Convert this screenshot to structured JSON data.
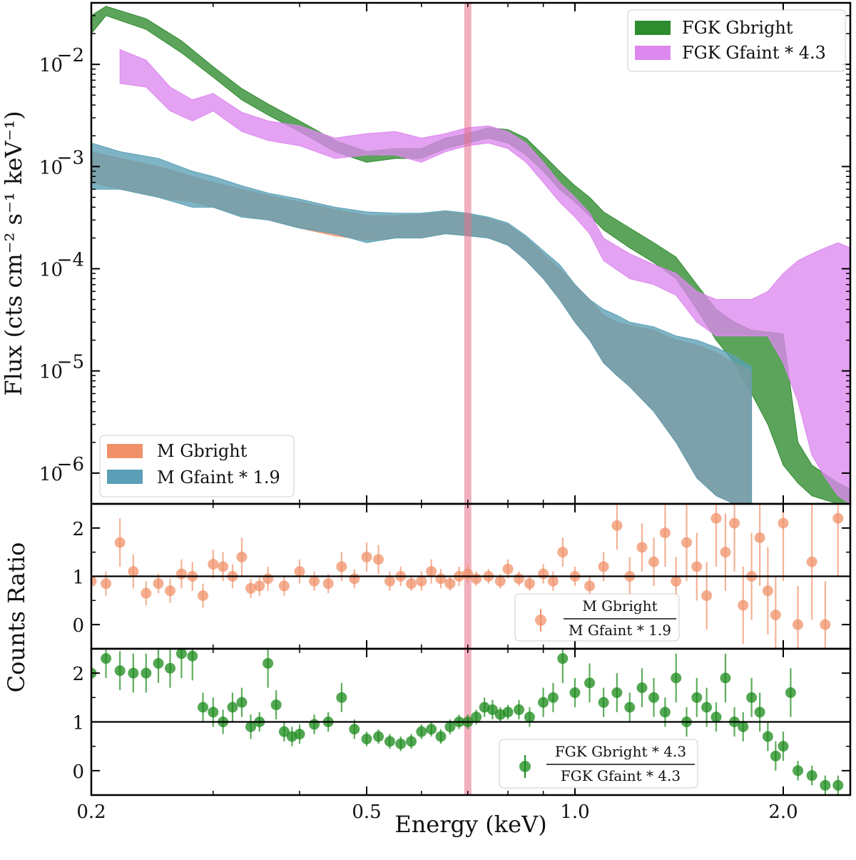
{
  "chart_data": [
    {
      "panel": "spectrum",
      "type": "area",
      "xlabel": "Energy (keV)",
      "ylabel": "Flux (cts cm⁻² s⁻¹ keV⁻¹)",
      "x_scale": "log",
      "y_scale": "log",
      "xlim": [
        0.2,
        2.5
      ],
      "ylim": [
        5e-07,
        0.04
      ],
      "x_ticks": [
        0.2,
        0.5,
        1.0,
        2.0
      ],
      "x_tick_labels": [
        "0.2",
        "0.5",
        "1.0",
        "2.0"
      ],
      "y_ticks": [
        1e-06,
        1e-05,
        0.0001,
        0.001,
        0.01
      ],
      "y_tick_labels": [
        {
          "base": "10",
          "exp": "−6"
        },
        {
          "base": "10",
          "exp": "−5"
        },
        {
          "base": "10",
          "exp": "−4"
        },
        {
          "base": "10",
          "exp": "−3"
        },
        {
          "base": "10",
          "exp": "−2"
        }
      ],
      "vertical_band_keV": 0.7,
      "series": [
        {
          "name": "FGK Gbright",
          "color": "#2e8b2e",
          "legend": "upper-right",
          "x": [
            0.2,
            0.21,
            0.24,
            0.27,
            0.3,
            0.33,
            0.36,
            0.4,
            0.45,
            0.5,
            0.55,
            0.6,
            0.65,
            0.7,
            0.75,
            0.8,
            0.85,
            0.9,
            0.95,
            1.0,
            1.05,
            1.1,
            1.2,
            1.3,
            1.4,
            1.5,
            1.6,
            1.7,
            1.8,
            1.9,
            2.0,
            2.1,
            2.2,
            2.4,
            2.5
          ],
          "lo": [
            0.02,
            0.03,
            0.022,
            0.013,
            0.0075,
            0.0045,
            0.0032,
            0.0022,
            0.0014,
            0.0011,
            0.0012,
            0.0012,
            0.0015,
            0.0017,
            0.0019,
            0.0017,
            0.0013,
            0.0009,
            0.0006,
            0.00045,
            0.00033,
            0.00024,
            0.00016,
            0.000115,
            8e-05,
            4e-05,
            2e-05,
            1.2e-05,
            6e-06,
            3e-06,
            1.2e-06,
            8e-07,
            6e-07,
            5e-07,
            5e-07
          ],
          "hi": [
            0.03,
            0.037,
            0.028,
            0.017,
            0.0095,
            0.0058,
            0.0041,
            0.0028,
            0.0018,
            0.0014,
            0.0015,
            0.0015,
            0.0019,
            0.0021,
            0.0024,
            0.0023,
            0.0019,
            0.0013,
            0.0009,
            0.00065,
            0.0005,
            0.00036,
            0.00025,
            0.00018,
            0.00013,
            7e-05,
            4e-05,
            3e-05,
            2.5e-05,
            2.4e-05,
            2.3e-05,
            2e-06,
            1.2e-06,
            8e-07,
            7e-07
          ]
        },
        {
          "name": "FGK Gfaint * 4.3",
          "color": "#dd88ee",
          "legend": "upper-right",
          "x": [
            0.22,
            0.24,
            0.26,
            0.28,
            0.3,
            0.33,
            0.36,
            0.4,
            0.45,
            0.5,
            0.55,
            0.6,
            0.65,
            0.7,
            0.75,
            0.8,
            0.85,
            0.9,
            0.95,
            1.0,
            1.05,
            1.1,
            1.2,
            1.3,
            1.4,
            1.5,
            1.6,
            1.7,
            1.8,
            1.9,
            2.0,
            2.1,
            2.2,
            2.3,
            2.4,
            2.5
          ],
          "lo": [
            0.0065,
            0.006,
            0.0035,
            0.0028,
            0.0035,
            0.0022,
            0.0018,
            0.0016,
            0.0012,
            0.0013,
            0.0013,
            0.0011,
            0.0014,
            0.0016,
            0.0017,
            0.0015,
            0.0011,
            0.0007,
            0.00045,
            0.00032,
            0.00022,
            0.00012,
            8e-05,
            7e-05,
            5.5e-05,
            3e-05,
            2.2e-05,
            2.2e-05,
            2.2e-05,
            2.2e-05,
            1.2e-05,
            5e-06,
            1.5e-06,
            9e-07,
            6e-07,
            5e-07
          ],
          "hi": [
            0.014,
            0.011,
            0.006,
            0.0045,
            0.0052,
            0.0034,
            0.0028,
            0.0025,
            0.0019,
            0.0021,
            0.0022,
            0.0019,
            0.0021,
            0.0024,
            0.0025,
            0.0022,
            0.0017,
            0.0011,
            0.0007,
            0.0005,
            0.00035,
            0.0002,
            0.00014,
            0.00011,
            9e-05,
            6e-05,
            5e-05,
            5e-05,
            5e-05,
            6e-05,
            9e-05,
            0.00012,
            0.00014,
            0.00016,
            0.00018,
            0.00016
          ]
        },
        {
          "name": "M Gbright",
          "color": "#f0916a",
          "legend": "lower-left",
          "x": [
            0.2,
            0.22,
            0.25,
            0.28,
            0.3,
            0.33,
            0.36,
            0.4,
            0.45,
            0.5,
            0.55,
            0.6,
            0.65,
            0.7,
            0.75,
            0.8,
            0.85,
            0.9,
            0.95,
            1.0,
            1.05,
            1.1,
            1.15,
            1.2,
            1.3,
            1.4,
            1.5,
            1.6,
            1.7,
            1.8
          ],
          "lo": [
            0.0007,
            0.0006,
            0.0005,
            0.00045,
            0.0004,
            0.00033,
            0.0003,
            0.00025,
            0.00021,
            0.00019,
            0.0002,
            0.0002,
            0.00022,
            0.00021,
            0.0002,
            0.00017,
            0.00012,
            8e-05,
            5e-05,
            3e-05,
            2e-05,
            1.2e-05,
            9e-06,
            7e-06,
            4e-06,
            2e-06,
            9e-07,
            6e-07,
            5e-07,
            5e-07
          ],
          "hi": [
            0.0014,
            0.0012,
            0.001,
            0.0008,
            0.0007,
            0.0006,
            0.00052,
            0.00045,
            0.00038,
            0.00033,
            0.00033,
            0.00034,
            0.00036,
            0.00034,
            0.00031,
            0.00027,
            0.0002,
            0.00014,
            0.0001,
            7e-05,
            5e-05,
            3.5e-05,
            3e-05,
            2.8e-05,
            2.5e-05,
            2e-05,
            1.8e-05,
            1.5e-05,
            1.2e-05,
            1e-05
          ]
        },
        {
          "name": "M Gfaint * 1.9",
          "color": "#5a9fb5",
          "legend": "lower-left",
          "x": [
            0.2,
            0.22,
            0.25,
            0.28,
            0.3,
            0.33,
            0.36,
            0.4,
            0.45,
            0.5,
            0.55,
            0.6,
            0.65,
            0.7,
            0.75,
            0.8,
            0.85,
            0.9,
            0.95,
            1.0,
            1.05,
            1.1,
            1.15,
            1.2,
            1.3,
            1.4,
            1.5,
            1.6,
            1.7,
            1.8
          ],
          "lo": [
            0.0006,
            0.0006,
            0.0005,
            0.0004,
            0.0004,
            0.00032,
            0.0003,
            0.00025,
            0.00022,
            0.00018,
            0.0002,
            0.0002,
            0.00022,
            0.00021,
            0.0002,
            0.00017,
            0.00012,
            8e-05,
            5e-05,
            3e-05,
            2e-05,
            1.2e-05,
            9e-06,
            7e-06,
            4e-06,
            2e-06,
            9e-07,
            6e-07,
            5e-07,
            5e-07
          ],
          "hi": [
            0.0017,
            0.0014,
            0.0012,
            0.0009,
            0.0008,
            0.00065,
            0.00055,
            0.00048,
            0.0004,
            0.00036,
            0.00035,
            0.00035,
            0.00037,
            0.00035,
            0.00032,
            0.00028,
            0.00021,
            0.00015,
            0.00011,
            7e-05,
            5e-05,
            4e-05,
            3.5e-05,
            3e-05,
            2.7e-05,
            2.2e-05,
            2e-05,
            1.7e-05,
            1.4e-05,
            1.1e-05
          ]
        }
      ]
    },
    {
      "panel": "ratio_m",
      "type": "scatter",
      "ylabel": "Counts Ratio",
      "x_scale": "log",
      "xlim": [
        0.2,
        2.5
      ],
      "ylim": [
        -0.5,
        2.5
      ],
      "y_ticks": [
        0,
        1,
        2
      ],
      "y_tick_labels": [
        "0",
        "1",
        "2"
      ],
      "reference_line": 1,
      "vertical_band_keV": 0.7,
      "legend": {
        "numerator": "M Gbright",
        "denominator": "M Gfaint * 1.9",
        "placement": "lower-right"
      },
      "color": "#f0916a",
      "x": [
        0.2,
        0.21,
        0.22,
        0.23,
        0.24,
        0.25,
        0.26,
        0.27,
        0.28,
        0.29,
        0.3,
        0.31,
        0.32,
        0.33,
        0.34,
        0.35,
        0.36,
        0.38,
        0.4,
        0.42,
        0.44,
        0.46,
        0.48,
        0.5,
        0.52,
        0.54,
        0.56,
        0.58,
        0.6,
        0.62,
        0.64,
        0.66,
        0.68,
        0.7,
        0.72,
        0.75,
        0.78,
        0.8,
        0.83,
        0.86,
        0.9,
        0.93,
        0.96,
        1.0,
        1.05,
        1.1,
        1.15,
        1.2,
        1.25,
        1.3,
        1.35,
        1.4,
        1.45,
        1.5,
        1.55,
        1.6,
        1.65,
        1.7,
        1.75,
        1.8,
        1.85,
        1.9,
        1.95,
        2.0,
        2.1,
        2.2,
        2.3,
        2.4
      ],
      "y": [
        0.9,
        0.85,
        1.7,
        1.1,
        0.65,
        0.85,
        0.7,
        1.05,
        1.0,
        0.6,
        1.25,
        1.2,
        1.0,
        1.4,
        0.75,
        0.8,
        0.95,
        0.8,
        1.1,
        0.9,
        0.85,
        1.2,
        0.95,
        1.4,
        1.35,
        0.9,
        1.0,
        0.85,
        0.9,
        1.1,
        0.95,
        0.85,
        1.0,
        1.05,
        0.95,
        1.0,
        0.9,
        1.15,
        0.95,
        0.85,
        1.05,
        0.9,
        1.5,
        1.0,
        0.8,
        1.2,
        2.05,
        1.0,
        1.6,
        1.3,
        1.9,
        0.9,
        1.7,
        1.2,
        0.6,
        2.2,
        1.5,
        2.1,
        0.4,
        1.0,
        1.8,
        0.7,
        0.2,
        2.1,
        0.0,
        1.3,
        0.0,
        2.2
      ],
      "yerr": [
        0.3,
        0.25,
        0.5,
        0.35,
        0.25,
        0.2,
        0.25,
        0.3,
        0.3,
        0.25,
        0.3,
        0.3,
        0.25,
        0.4,
        0.2,
        0.2,
        0.25,
        0.2,
        0.25,
        0.2,
        0.2,
        0.3,
        0.2,
        0.3,
        0.3,
        0.2,
        0.2,
        0.15,
        0.2,
        0.25,
        0.2,
        0.15,
        0.2,
        0.2,
        0.15,
        0.15,
        0.15,
        0.2,
        0.15,
        0.15,
        0.2,
        0.2,
        0.3,
        0.2,
        0.2,
        0.3,
        0.5,
        0.4,
        0.5,
        0.5,
        0.7,
        0.5,
        0.8,
        0.7,
        0.7,
        1.0,
        0.8,
        1.0,
        0.8,
        0.9,
        1.0,
        0.9,
        0.8,
        1.2,
        0.8,
        1.2,
        0.9,
        1.2
      ]
    },
    {
      "panel": "ratio_fgk",
      "type": "scatter",
      "x_scale": "log",
      "xlim": [
        0.2,
        2.5
      ],
      "ylim": [
        -0.5,
        2.5
      ],
      "y_ticks": [
        0,
        1,
        2
      ],
      "y_tick_labels": [
        "0",
        "1",
        "2"
      ],
      "reference_line": 1,
      "vertical_band_keV": 0.7,
      "legend": {
        "numerator": "FGK Gbright * 4.3",
        "denominator": "FGK Gfaint * 4.3",
        "placement": "lower-right"
      },
      "color": "#1a8a1a",
      "x": [
        0.2,
        0.21,
        0.22,
        0.23,
        0.24,
        0.25,
        0.26,
        0.27,
        0.28,
        0.29,
        0.3,
        0.31,
        0.32,
        0.33,
        0.34,
        0.35,
        0.36,
        0.37,
        0.38,
        0.39,
        0.4,
        0.42,
        0.44,
        0.46,
        0.48,
        0.5,
        0.52,
        0.54,
        0.56,
        0.58,
        0.6,
        0.62,
        0.64,
        0.66,
        0.68,
        0.7,
        0.72,
        0.74,
        0.76,
        0.78,
        0.8,
        0.83,
        0.86,
        0.9,
        0.93,
        0.96,
        1.0,
        1.05,
        1.1,
        1.15,
        1.2,
        1.25,
        1.3,
        1.35,
        1.4,
        1.45,
        1.5,
        1.55,
        1.6,
        1.65,
        1.7,
        1.75,
        1.8,
        1.85,
        1.9,
        1.95,
        2.0,
        2.05,
        2.1,
        2.2,
        2.3,
        2.4
      ],
      "y": [
        2.0,
        2.3,
        2.05,
        2.0,
        2.0,
        2.2,
        2.1,
        2.4,
        2.35,
        1.3,
        1.2,
        1.0,
        1.3,
        1.4,
        0.9,
        1.0,
        2.2,
        1.35,
        0.8,
        0.7,
        0.75,
        0.95,
        1.0,
        1.5,
        0.85,
        0.65,
        0.7,
        0.6,
        0.55,
        0.6,
        0.8,
        0.85,
        0.7,
        0.9,
        1.0,
        1.0,
        1.1,
        1.3,
        1.25,
        1.15,
        1.2,
        1.25,
        1.1,
        1.4,
        1.5,
        2.3,
        1.6,
        1.8,
        1.4,
        1.6,
        1.3,
        1.7,
        1.5,
        1.2,
        1.9,
        1.0,
        1.5,
        1.3,
        1.1,
        1.9,
        1.0,
        0.9,
        1.5,
        1.2,
        0.7,
        0.3,
        0.5,
        1.6,
        0.0,
        -0.1,
        -0.3,
        -0.3
      ],
      "yerr": [
        0.5,
        0.4,
        0.4,
        0.4,
        0.4,
        0.4,
        0.4,
        0.5,
        0.5,
        0.3,
        0.3,
        0.25,
        0.3,
        0.3,
        0.25,
        0.2,
        0.5,
        0.3,
        0.2,
        0.2,
        0.2,
        0.2,
        0.2,
        0.3,
        0.2,
        0.15,
        0.15,
        0.15,
        0.15,
        0.15,
        0.15,
        0.15,
        0.15,
        0.15,
        0.15,
        0.15,
        0.15,
        0.2,
        0.2,
        0.15,
        0.15,
        0.2,
        0.2,
        0.3,
        0.3,
        0.5,
        0.3,
        0.4,
        0.3,
        0.4,
        0.3,
        0.4,
        0.4,
        0.3,
        0.5,
        0.3,
        0.4,
        0.4,
        0.3,
        0.5,
        0.3,
        0.3,
        0.4,
        0.4,
        0.3,
        0.3,
        0.3,
        0.5,
        0.2,
        0.2,
        0.2,
        0.2
      ]
    }
  ]
}
